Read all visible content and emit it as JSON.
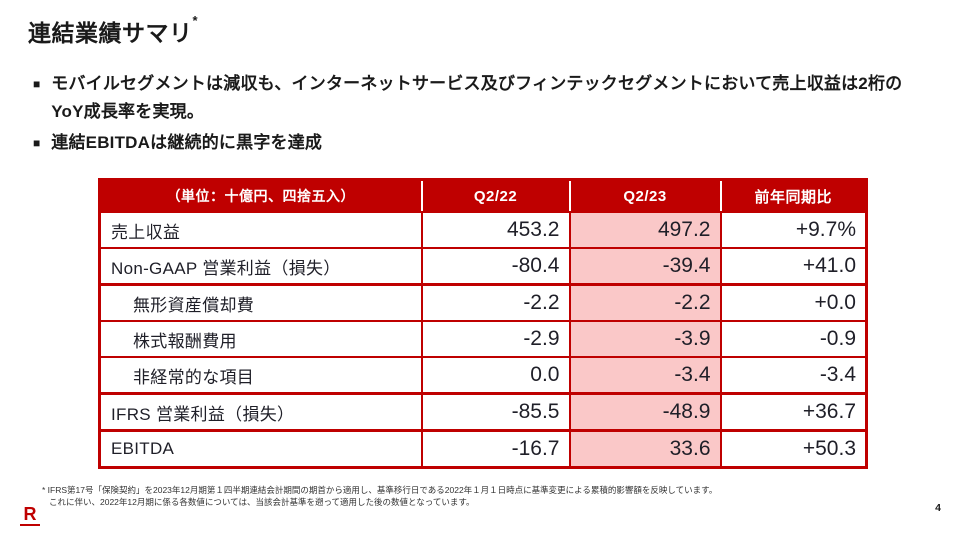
{
  "slide": {
    "title": "連結業績サマリ",
    "title_note_marker": "*",
    "bullet_marker": "■",
    "bullets": [
      "モバイルセグメントは減収も、インターネットサービス及びフィンテックセグメントにおいて売上収益は2桁のYoY成長率を実現。",
      "連結EBITDAは継続的に黒字を達成"
    ],
    "page_number": "4"
  },
  "table": {
    "unit_label": "（単位：十億円、四捨五入）",
    "columns": [
      "Q2/22",
      "Q2/23",
      "前年同期比"
    ],
    "highlighted_column": "Q2/23",
    "rows": [
      {
        "label": "売上収益",
        "indent": false,
        "q2_22": "453.2",
        "q2_23": "497.2",
        "yoy": "+9.7%"
      },
      {
        "label": "Non-GAAP 営業利益（損失）",
        "indent": false,
        "q2_22": "-80.4",
        "q2_23": "-39.4",
        "yoy": "+41.0"
      },
      {
        "label": "無形資産償却費",
        "indent": true,
        "q2_22": "-2.2",
        "q2_23": "-2.2",
        "yoy": "+0.0"
      },
      {
        "label": "株式報酬費用",
        "indent": true,
        "q2_22": "-2.9",
        "q2_23": "-3.9",
        "yoy": "-0.9"
      },
      {
        "label": "非経常的な項目",
        "indent": true,
        "q2_22": "0.0",
        "q2_23": "-3.4",
        "yoy": "-3.4"
      },
      {
        "label": "IFRS 営業利益（損失）",
        "indent": false,
        "q2_22": "-85.5",
        "q2_23": "-48.9",
        "yoy": "+36.7"
      },
      {
        "label": "EBITDA",
        "indent": false,
        "q2_22": "-16.7",
        "q2_23": "33.6",
        "yoy": "+50.3"
      }
    ]
  },
  "footnote": {
    "lines": [
      "* IFRS第17号「保険契約」を2023年12月期第１四半期連結会計期間の期首から適用し、基準移行日である2022年１月１日時点に基準変更による累積的影響額を反映しています。",
      "これに伴い、2022年12月期に係る各数値については、当該会計基準を遡って適用した後の数値となっています。"
    ]
  },
  "logo": {
    "letter": "R",
    "name": "rakuten-logo"
  },
  "colors": {
    "brand_red": "#BF0000",
    "highlight_pink": "#FAC8C8",
    "header_text": "#FFFFFF",
    "body_text": "#1F1F28"
  }
}
